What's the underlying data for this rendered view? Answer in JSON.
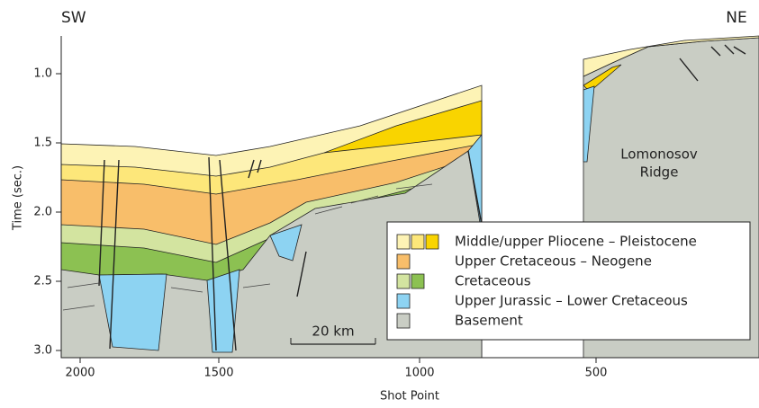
{
  "labels": {
    "sw": "SW",
    "ne": "NE",
    "ridge": [
      "Lomonosov",
      "Ridge"
    ],
    "scale": "20 km"
  },
  "axes": {
    "y": {
      "title": "Time (sec.)",
      "ticks": [
        {
          "value": 1,
          "label": "1.0"
        },
        {
          "value": 1.5,
          "label": "1.5"
        },
        {
          "value": 2,
          "label": "2.0"
        },
        {
          "value": 2.5,
          "label": "2.5"
        },
        {
          "value": 3,
          "label": "3.0"
        }
      ]
    },
    "x": {
      "title": "Shot Point",
      "ticks": [
        2000,
        1500,
        1000,
        500
      ]
    }
  },
  "legend": [
    {
      "label": "Middle/upper Pliocene – Pleistocene",
      "colors": [
        "#fdf3b5",
        "#fde77a",
        "#f9d400"
      ]
    },
    {
      "label": "Upper Cretaceous – Neogene",
      "colors": [
        "#f8be6a"
      ]
    },
    {
      "label": "Cretaceous",
      "colors": [
        "#d3e4a0",
        "#8cc152"
      ]
    },
    {
      "label": "Upper Jurassic – Lower Cretaceous",
      "colors": [
        "#8dd3f2"
      ]
    },
    {
      "label": "Basement",
      "colors": [
        "#c9cdc4"
      ]
    }
  ]
}
